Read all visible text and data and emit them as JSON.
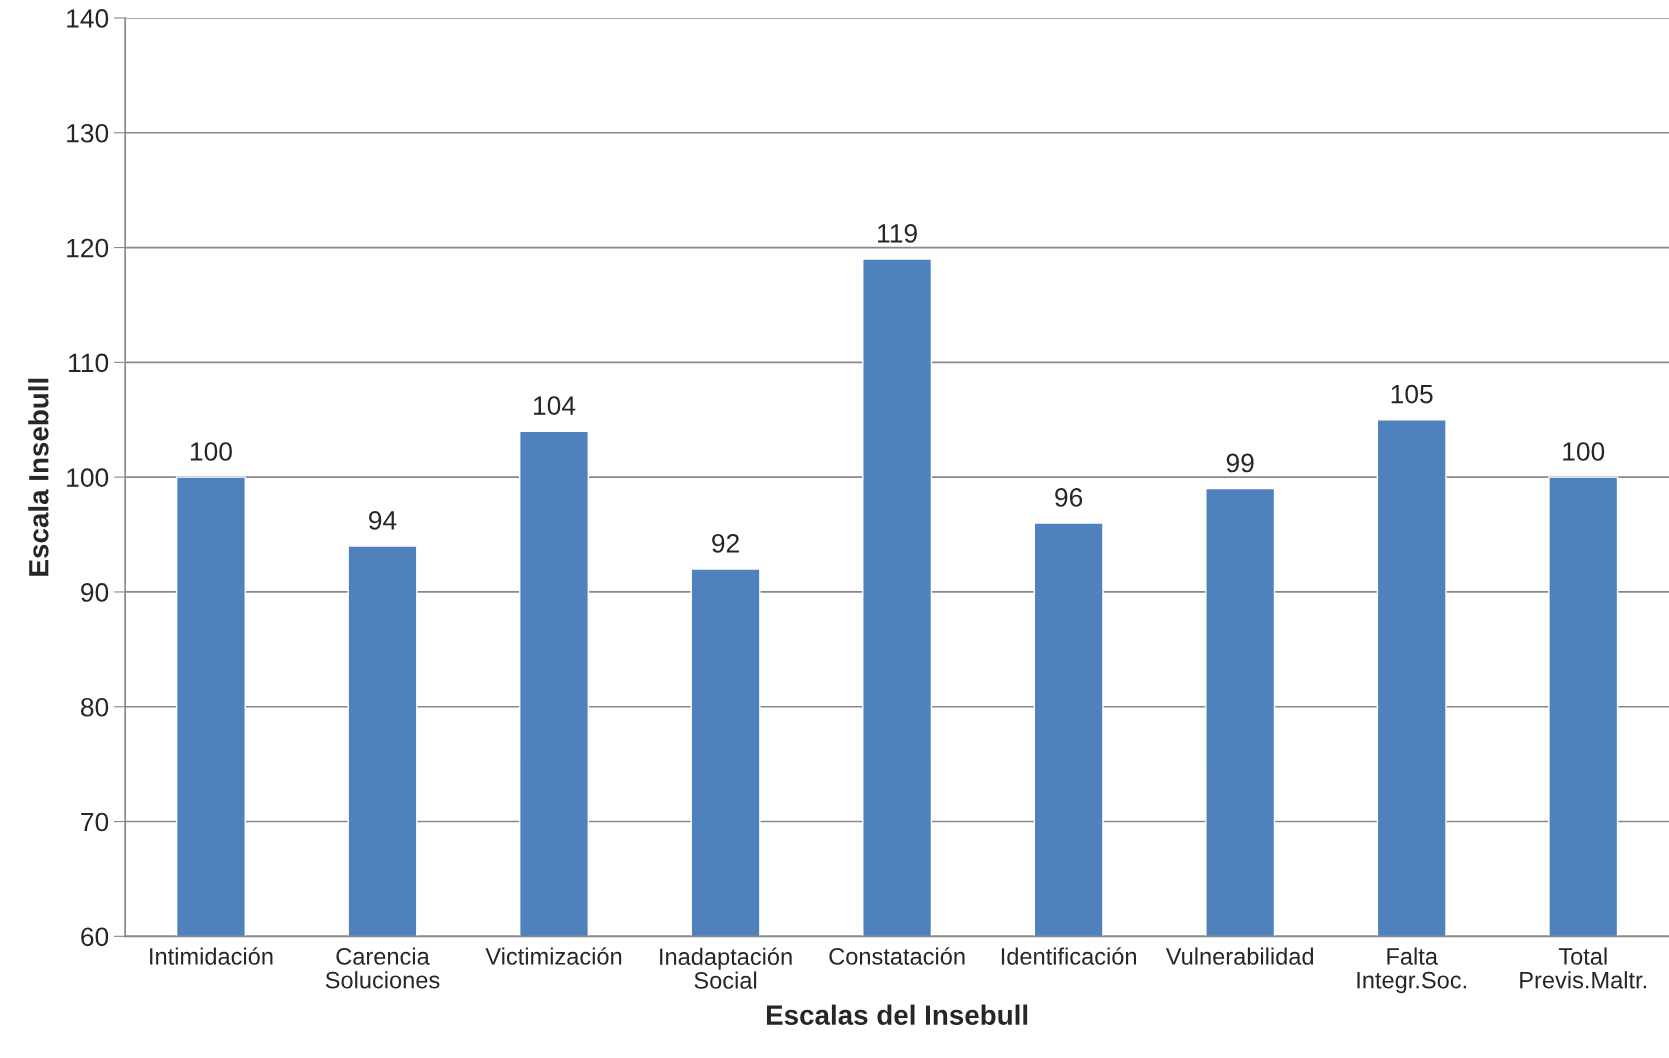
{
  "chart_data": {
    "type": "bar",
    "xlabel": "Escalas del Insebull",
    "ylabel": "Escala Insebull",
    "categories": [
      "Intimidación",
      "Carencia\nSoluciones",
      "Victimización",
      "Inadaptación\nSocial",
      "Constatación",
      "Identificación",
      "Vulnerabilidad",
      "Falta\nIntegr.Soc.",
      "Total\nPrevis.Maltr."
    ],
    "values": [
      100,
      94,
      104,
      92,
      119,
      96,
      99,
      105,
      100
    ],
    "color": "#4f81bd",
    "ylim": [
      60,
      140
    ],
    "yticks": [
      60,
      70,
      80,
      90,
      100,
      110,
      120,
      130,
      140
    ],
    "grid": "y",
    "data_labels": true,
    "legend": false
  }
}
